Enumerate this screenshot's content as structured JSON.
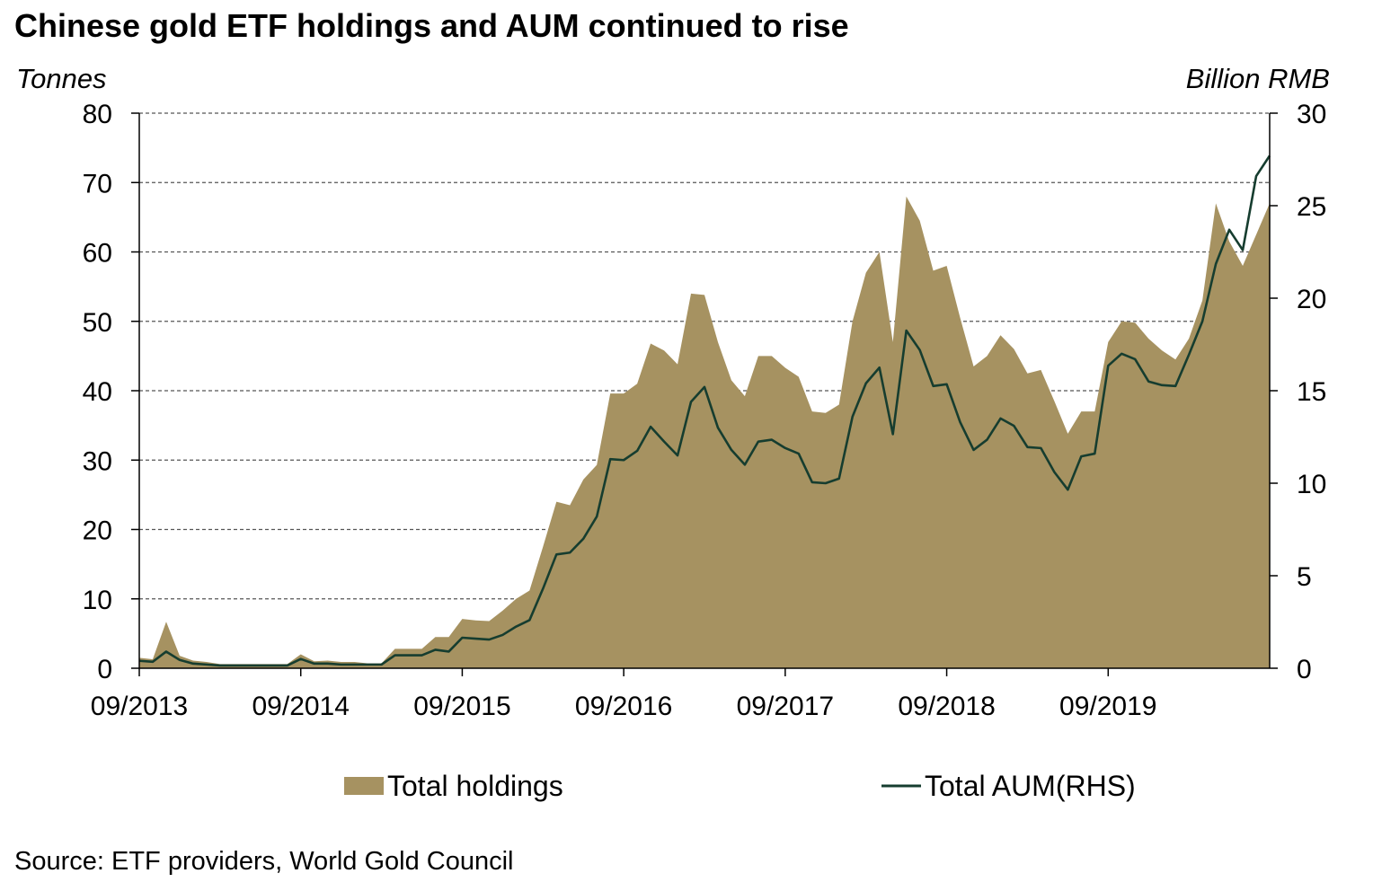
{
  "title": "Chinese gold ETF holdings and AUM continued to rise",
  "unit_left": "Tonnes",
  "unit_right": "Billion RMB",
  "source": "Source: ETF providers, World Gold Council",
  "colors": {
    "holdings": "#a69261",
    "aum": "#163d2f",
    "grid": "#555555",
    "axis": "#000000"
  },
  "chart_data": {
    "type": "area",
    "title": "Chinese gold ETF holdings and AUM continued to rise",
    "ylabel": "Tonnes",
    "y2label": "Billion RMB",
    "ylim": [
      0,
      80
    ],
    "y2lim": [
      0,
      30
    ],
    "yticks": [
      0,
      10,
      20,
      30,
      40,
      50,
      60,
      70,
      80
    ],
    "y2ticks": [
      0,
      5,
      10,
      15,
      20,
      25,
      30
    ],
    "grid": true,
    "legend_position": "bottom",
    "x_tick_labels": [
      "09/2013",
      "09/2014",
      "09/2015",
      "09/2016",
      "09/2017",
      "09/2018",
      "09/2019"
    ],
    "x_tick_index": [
      0,
      12,
      24,
      36,
      48,
      60,
      72
    ],
    "series": [
      {
        "name": "Total holdings",
        "type": "area",
        "axis": "left",
        "values": [
          1.5,
          1.3,
          6.7,
          1.8,
          1.1,
          0.9,
          0.6,
          0.6,
          0.6,
          0.6,
          0.6,
          0.6,
          2.0,
          1.0,
          1.1,
          0.9,
          0.9,
          0.7,
          0.7,
          2.8,
          2.8,
          2.8,
          4.5,
          4.5,
          7.1,
          6.9,
          6.8,
          8.3,
          10.0,
          11.2,
          17.5,
          24.0,
          23.5,
          27.2,
          29.3,
          39.6,
          39.6,
          41.0,
          46.8,
          45.8,
          43.8,
          54.0,
          53.8,
          47.0,
          41.5,
          39.2,
          45.0,
          45.0,
          43.3,
          42.0,
          37.0,
          36.8,
          38.0,
          50.0,
          57.0,
          60.0,
          47.0,
          68.0,
          64.5,
          57.3,
          58.0,
          50.5,
          43.5,
          45.0,
          48.0,
          46.0,
          42.5,
          43.0,
          38.5,
          33.8,
          37.0,
          37.0,
          47.0,
          50.0,
          49.8,
          47.5,
          45.8,
          44.5,
          47.5,
          53.0,
          67.0,
          61.5,
          58.0,
          62.5,
          67.0
        ]
      },
      {
        "name": "Total AUM(RHS)",
        "type": "line",
        "axis": "right",
        "values": [
          0.4,
          0.35,
          0.9,
          0.45,
          0.25,
          0.2,
          0.15,
          0.15,
          0.15,
          0.15,
          0.15,
          0.15,
          0.5,
          0.25,
          0.25,
          0.2,
          0.2,
          0.2,
          0.2,
          0.7,
          0.7,
          0.7,
          1.0,
          0.9,
          1.65,
          1.6,
          1.55,
          1.8,
          2.25,
          2.6,
          4.3,
          6.15,
          6.25,
          7.0,
          8.2,
          11.3,
          11.25,
          11.75,
          13.05,
          12.25,
          11.5,
          14.4,
          15.2,
          13.0,
          11.8,
          11.0,
          12.25,
          12.35,
          11.9,
          11.6,
          10.05,
          10.0,
          10.25,
          13.6,
          15.4,
          16.25,
          12.65,
          18.25,
          17.2,
          15.25,
          15.35,
          13.3,
          11.8,
          12.35,
          13.5,
          13.1,
          11.95,
          11.9,
          10.6,
          9.65,
          11.45,
          11.6,
          16.35,
          17.0,
          16.7,
          15.5,
          15.3,
          15.25,
          16.95,
          18.75,
          21.85,
          23.7,
          22.6,
          26.6,
          27.7
        ]
      }
    ]
  }
}
